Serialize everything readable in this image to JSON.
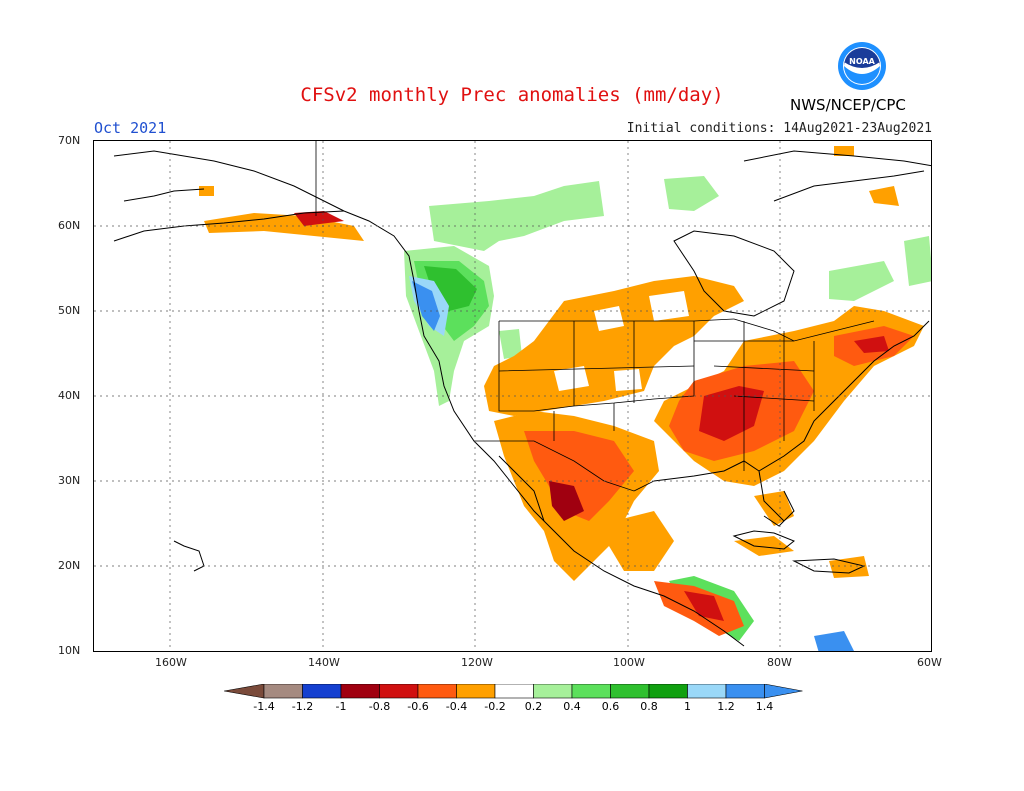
{
  "title": "CFSv2 monthly Prec anomalies (mm/day)",
  "month": "Oct 2021",
  "initial_conditions": "Initial conditions: 14Aug2021-23Aug2021",
  "agency": "NWS/NCEP/CPC",
  "logo_text": "NOAA",
  "lat_labels": [
    "70N",
    "60N",
    "50N",
    "40N",
    "30N",
    "20N",
    "10N"
  ],
  "lon_labels": [
    "160W",
    "140W",
    "120W",
    "100W",
    "80W",
    "60W"
  ],
  "colorbar": {
    "ticks": [
      "-1.4",
      "-1.2",
      "-1",
      "-0.8",
      "-0.6",
      "-0.4",
      "-0.2",
      "0.2",
      "0.4",
      "0.6",
      "0.8",
      "1",
      "1.2",
      "1.4"
    ],
    "colors": [
      "#7a4a3a",
      "#a58a80",
      "#1540d0",
      "#a00010",
      "#d01010",
      "#ff5a10",
      "#ffa000",
      "#ffffff",
      "#a6f09a",
      "#5ce05c",
      "#2fc02f",
      "#10a010",
      "#9ad8f8",
      "#3a90f0",
      "#3a90f0"
    ]
  },
  "colors": {
    "title": "#e01010",
    "month": "#2050d0"
  }
}
